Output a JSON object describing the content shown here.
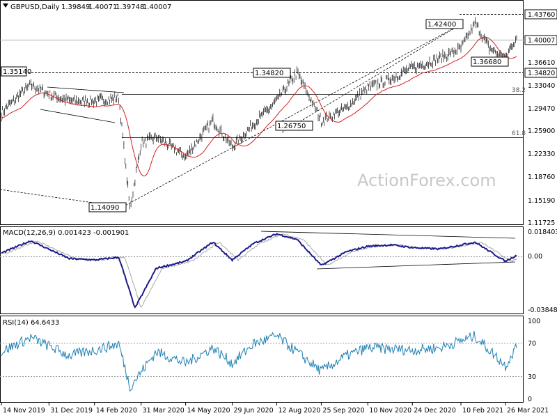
{
  "title": "GBPUSD,Daily",
  "ohlc": [
    "1.39849",
    "1.40071",
    "1.39748",
    "1.40007"
  ],
  "watermark": "ActionForex.com",
  "x_labels": [
    "14 Nov 2019",
    "31 Dec 2019",
    "14 Feb 2020",
    "31 Mar 2020",
    "14 May 2020",
    "29 Jun 2020",
    "12 Aug 2020",
    "25 Sep 2020",
    "10 Nov 2020",
    "24 Dec 2020",
    "10 Feb 2021",
    "26 Mar 2021"
  ],
  "price_axis": {
    "labels": [
      "1.43760",
      "1.40007",
      "1.36610",
      "1.34820",
      "1.33040",
      "1.29470",
      "1.25900",
      "1.22330",
      "1.18760",
      "1.15190",
      "1.11725"
    ],
    "boxed": [
      "1.43760",
      "1.40007",
      "1.34820"
    ]
  },
  "macd": {
    "title": "MACD(12,26,9) 0.001423 -0.001901",
    "axis_labels": [
      "0.018403",
      "0.00",
      "-0.038483"
    ]
  },
  "rsi": {
    "title": "RSI(14) 64.6433",
    "axis_labels": [
      "100",
      "70",
      "30",
      "0"
    ]
  },
  "annotations": {
    "p142400": "1.42400",
    "p136680": "1.36680",
    "p134820": "1.34820",
    "p126750": "1.26750",
    "p135140": "1.35140",
    "p114090": "1.14090",
    "fib382": "38.2",
    "fib618": "61.8"
  },
  "chart_data": {
    "type": "line",
    "instrument": "GBPUSD",
    "timeframe": "Daily",
    "last_ohlc": {
      "open": 1.39849,
      "high": 1.40071,
      "low": 1.39748,
      "close": 1.40007
    },
    "price_ylim": [
      1.11725,
      1.4376
    ],
    "price_close": [
      [
        "2019-11-14",
        1.288
      ],
      [
        "2019-12-13",
        1.33
      ],
      [
        "2019-12-31",
        1.315
      ],
      [
        "2020-01-20",
        1.305
      ],
      [
        "2020-02-14",
        1.305
      ],
      [
        "2020-03-09",
        1.31
      ],
      [
        "2020-03-20",
        1.141
      ],
      [
        "2020-03-31",
        1.24
      ],
      [
        "2020-04-15",
        1.25
      ],
      [
        "2020-05-14",
        1.22
      ],
      [
        "2020-06-10",
        1.275
      ],
      [
        "2020-06-29",
        1.235
      ],
      [
        "2020-07-20",
        1.27
      ],
      [
        "2020-08-12",
        1.305
      ],
      [
        "2020-09-01",
        1.348
      ],
      [
        "2020-09-25",
        1.275
      ],
      [
        "2020-10-20",
        1.295
      ],
      [
        "2020-11-10",
        1.325
      ],
      [
        "2020-12-04",
        1.34
      ],
      [
        "2020-12-24",
        1.355
      ],
      [
        "2021-01-20",
        1.37
      ],
      [
        "2021-02-10",
        1.385
      ],
      [
        "2021-02-24",
        1.424
      ],
      [
        "2021-03-10",
        1.385
      ],
      [
        "2021-03-26",
        1.37
      ],
      [
        "2021-04-05",
        1.40007
      ]
    ],
    "macd_ylim": [
      -0.038483,
      0.018403
    ],
    "macd_line": [
      [
        "2019-11-14",
        0.003
      ],
      [
        "2019-12-13",
        0.012
      ],
      [
        "2020-01-20",
        -0.001
      ],
      [
        "2020-02-14",
        -0.002
      ],
      [
        "2020-03-09",
        0.0
      ],
      [
        "2020-03-25",
        -0.037
      ],
      [
        "2020-04-15",
        -0.008
      ],
      [
        "2020-05-14",
        -0.003
      ],
      [
        "2020-06-10",
        0.011
      ],
      [
        "2020-06-29",
        -0.002
      ],
      [
        "2020-07-20",
        0.01
      ],
      [
        "2020-08-12",
        0.017
      ],
      [
        "2020-09-01",
        0.013
      ],
      [
        "2020-09-25",
        -0.006
      ],
      [
        "2020-10-20",
        0.004
      ],
      [
        "2020-11-10",
        0.008
      ],
      [
        "2020-12-04",
        0.009
      ],
      [
        "2020-12-24",
        0.007
      ],
      [
        "2021-01-20",
        0.006
      ],
      [
        "2021-02-24",
        0.011
      ],
      [
        "2021-03-26",
        -0.003
      ],
      [
        "2021-04-05",
        0.001
      ]
    ],
    "rsi_ylim": [
      0,
      100
    ],
    "rsi_levels": [
      70,
      30
    ],
    "rsi_line": [
      [
        "2019-11-14",
        60
      ],
      [
        "2019-12-13",
        78
      ],
      [
        "2020-01-20",
        55
      ],
      [
        "2020-02-14",
        62
      ],
      [
        "2020-03-09",
        70
      ],
      [
        "2020-03-20",
        15
      ],
      [
        "2020-04-15",
        60
      ],
      [
        "2020-05-14",
        45
      ],
      [
        "2020-06-10",
        65
      ],
      [
        "2020-06-29",
        45
      ],
      [
        "2020-07-20",
        70
      ],
      [
        "2020-08-12",
        80
      ],
      [
        "2020-09-25",
        35
      ],
      [
        "2020-10-20",
        55
      ],
      [
        "2020-11-10",
        65
      ],
      [
        "2020-12-24",
        62
      ],
      [
        "2021-01-20",
        65
      ],
      [
        "2021-02-24",
        80
      ],
      [
        "2021-03-26",
        42
      ],
      [
        "2021-04-05",
        64.6433
      ]
    ],
    "levels": [
      {
        "label": "1.43760",
        "value": 1.4376
      },
      {
        "label": "1.34820",
        "value": 1.3482
      },
      {
        "label": "38.2",
        "value": 1.3162
      },
      {
        "label": "61.8",
        "value": 1.2508
      }
    ],
    "xlim": [
      "2019-11-14",
      "2021-04-06"
    ]
  }
}
